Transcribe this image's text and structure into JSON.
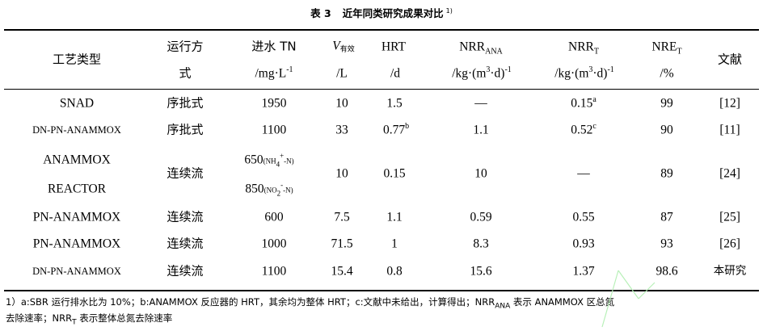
{
  "caption": {
    "number": "表 3",
    "title": "近年同类研究成果对比",
    "ref": "1)"
  },
  "headers": {
    "process_type": "工艺类型",
    "mode_line1": "运行方",
    "mode_line2": "式",
    "tn_line1": "进水 TN",
    "tn_unit": "/mg·L",
    "tn_unit_exp": "-1",
    "v_symbol": "V",
    "v_sub": "有效",
    "v_unit": "/L",
    "hrt": "HRT",
    "hrt_unit": "/d",
    "nrr_ana": "NRR",
    "nrr_ana_sub": "ANA",
    "nrr_ana_unit": "/kg·(m",
    "nrr_ana_unit_exp": "3",
    "nrr_ana_unit_mid": "·d)",
    "nrr_ana_unit_exp2": "-1",
    "nrr_t": "NRR",
    "nrr_t_sub": "T",
    "nrr_t_unit": "/kg·(m",
    "nrr_t_unit_exp": "3",
    "nrr_t_unit_mid": "·d)",
    "nrr_t_unit_exp2": "-1",
    "nre_t": "NRE",
    "nre_t_sub": "T",
    "nre_t_unit": "/%",
    "reference": "文献"
  },
  "rows": [
    {
      "process": "SNAD",
      "mode": "序批式",
      "tn": "1950",
      "v": "10",
      "hrt": "1.5",
      "hrt_sup": "",
      "nrr_ana": "—",
      "nrr_t": "0.15",
      "nrr_t_sup": "a",
      "nre": "99",
      "ref": "[12]"
    },
    {
      "process": "DN-PN-ANAMMOX",
      "mode": "序批式",
      "tn": "1100",
      "v": "33",
      "hrt": "0.77",
      "hrt_sup": "b",
      "nrr_ana": "1.1",
      "nrr_t": "0.52",
      "nrr_t_sup": "c",
      "nre": "90",
      "ref": "[11]"
    },
    {
      "process_line1": "ANAMMOX",
      "process_line2": "REACTOR",
      "mode": "连续流",
      "tn1": "650",
      "tn1_paren_open": "(NH",
      "tn1_sub": "4",
      "tn1_sup": "+",
      "tn1_paren_close": "-N)",
      "tn2": "850",
      "tn2_paren_open": "(NO",
      "tn2_sub": "2",
      "tn2_sup": "-",
      "tn2_paren_close": "-N)",
      "v": "10",
      "hrt": "0.15",
      "nrr_ana": "10",
      "nrr_t": "—",
      "nre": "89",
      "ref": "[24]"
    },
    {
      "process": "PN-ANAMMOX",
      "mode": "连续流",
      "tn": "600",
      "v": "7.5",
      "hrt": "1.1",
      "nrr_ana": "0.59",
      "nrr_t": "0.55",
      "nre": "87",
      "ref": "[25]"
    },
    {
      "process": "PN-ANAMMOX",
      "mode": "连续流",
      "tn": "1000",
      "v": "71.5",
      "hrt": "1",
      "nrr_ana": "8.3",
      "nrr_t": "0.93",
      "nre": "93",
      "ref": "[26]"
    },
    {
      "process": "DN-PN-ANAMMOX",
      "mode": "连续流",
      "tn": "1100",
      "v": "15.4",
      "hrt": "0.8",
      "nrr_ana": "15.6",
      "nrr_t": "1.37",
      "nre": "98.6",
      "ref": "本研究"
    }
  ],
  "footnote": {
    "line1_a": "1）a:SBR 运行排水比为 10%；b:ANAMMOX 反应器的 HRT，其余均为整体 HRT；c:文献中未给出，计算得出；NRR",
    "line1_sub": "ANA",
    "line1_b": " 表示 ANAMMOX 区总氮",
    "line2_a": "去除速率；NRR",
    "line2_sub": "T",
    "line2_b": " 表示整体总氮去除速率"
  },
  "colors": {
    "rule": "#000000",
    "watermark": "#b8f0b8"
  }
}
